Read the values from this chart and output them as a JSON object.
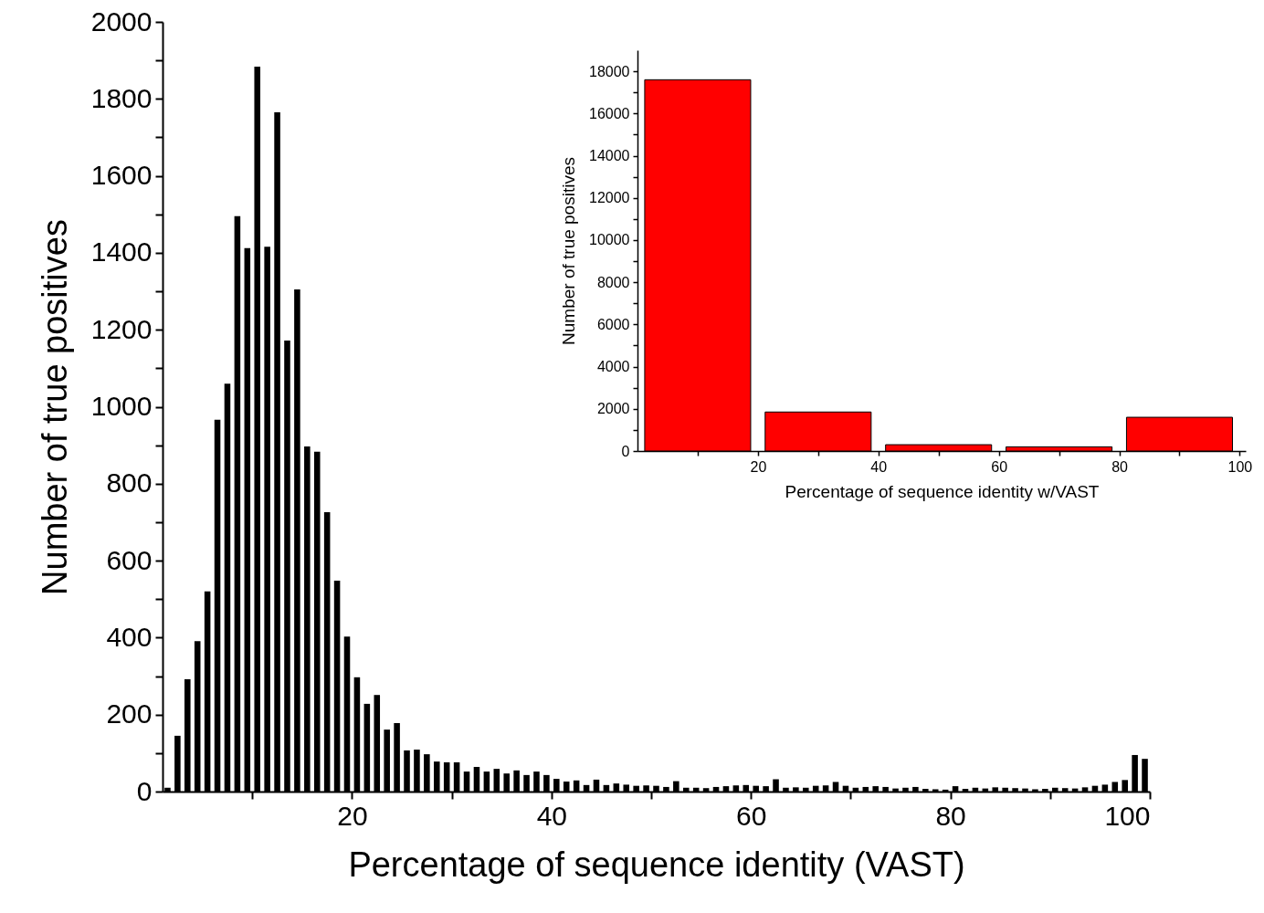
{
  "chart_data": [
    {
      "type": "histogram",
      "xlabel": "Percentage of sequence identity (VAST)",
      "ylabel": "Number of true positives",
      "color": "#000000",
      "bins": [
        1,
        2,
        3,
        4,
        5,
        6,
        7,
        8,
        9,
        10,
        11,
        12,
        13,
        14,
        15,
        16,
        17,
        18,
        19,
        20,
        21,
        22,
        23,
        24,
        25,
        26,
        27,
        28,
        29,
        30,
        31,
        32,
        33,
        34,
        35,
        36,
        37,
        38,
        39,
        40,
        41,
        42,
        43,
        44,
        45,
        46,
        47,
        48,
        49,
        50,
        51,
        52,
        53,
        54,
        55,
        56,
        57,
        58,
        59,
        60,
        61,
        62,
        63,
        64,
        65,
        66,
        67,
        68,
        69,
        70,
        71,
        72,
        73,
        74,
        75,
        76,
        77,
        78,
        79,
        80,
        81,
        82,
        83,
        84,
        85,
        86,
        87,
        88,
        89,
        90,
        91,
        92,
        93,
        94,
        95,
        96,
        97,
        98,
        99,
        100
      ],
      "values": [
        10,
        145,
        292,
        391,
        520,
        966,
        1060,
        1495,
        1412,
        1884,
        1416,
        1765,
        1172,
        1305,
        897,
        883,
        726,
        548,
        403,
        297,
        228,
        251,
        161,
        178,
        107,
        109,
        97,
        78,
        76,
        76,
        52,
        64,
        52,
        59,
        47,
        55,
        43,
        52,
        43,
        33,
        26,
        29,
        17,
        31,
        17,
        21,
        18,
        15,
        16,
        15,
        12,
        27,
        10,
        10,
        9,
        12,
        14,
        16,
        17,
        15,
        14,
        32,
        10,
        11,
        10,
        15,
        16,
        25,
        15,
        10,
        12,
        14,
        12,
        8,
        10,
        12,
        7,
        6,
        5,
        14,
        7,
        10,
        8,
        11,
        10,
        9,
        8,
        6,
        7,
        10,
        9,
        8,
        11,
        15,
        18,
        25,
        30,
        95,
        85
      ],
      "xlim": [
        1,
        100
      ],
      "xticks": [
        {
          "value": 10,
          "label": null
        },
        20,
        {
          "value": 30,
          "label": null
        },
        40,
        {
          "value": 50,
          "label": null
        },
        60,
        {
          "value": 70,
          "label": null
        },
        80,
        {
          "value": 90,
          "label": null
        },
        100
      ],
      "ylim": [
        0,
        2000
      ],
      "yticks": [
        0,
        {
          "value": 100,
          "label": null
        },
        200,
        {
          "value": 300,
          "label": null
        },
        400,
        {
          "value": 500,
          "label": null
        },
        600,
        {
          "value": 700,
          "label": null
        },
        800,
        {
          "value": 900,
          "label": null
        },
        1000,
        {
          "value": 1100,
          "label": null
        },
        1200,
        {
          "value": 1300,
          "label": null
        },
        1400,
        {
          "value": 1500,
          "label": null
        },
        1600,
        {
          "value": 1700,
          "label": null
        },
        1800,
        {
          "value": 1900,
          "label": null
        },
        2000
      ]
    },
    {
      "type": "histogram",
      "xlabel": "Percentage of sequence identity w/VAST",
      "ylabel": "Number of true positives",
      "color": "#ff0000",
      "bins": [
        0,
        20,
        40,
        60,
        80,
        100
      ],
      "values": [
        17600,
        1850,
        300,
        200,
        1600
      ],
      "xlim": [
        0,
        101
      ],
      "xticks": [
        {
          "value": 10,
          "label": null
        },
        20,
        {
          "value": 30,
          "label": null
        },
        40,
        {
          "value": 50,
          "label": null
        },
        60,
        {
          "value": 70,
          "label": null
        },
        80,
        {
          "value": 90,
          "label": null
        },
        100
      ],
      "ylim": [
        0,
        19000
      ],
      "yticks": [
        0,
        {
          "value": 1000,
          "label": null
        },
        2000,
        {
          "value": 3000,
          "label": null
        },
        4000,
        {
          "value": 5000,
          "label": null
        },
        6000,
        {
          "value": 7000,
          "label": null
        },
        8000,
        {
          "value": 9000,
          "label": null
        },
        10000,
        {
          "value": 11000,
          "label": null
        },
        12000,
        {
          "value": 13000,
          "label": null
        },
        14000,
        {
          "value": 15000,
          "label": null
        },
        16000,
        {
          "value": 17000,
          "label": null
        },
        18000
      ]
    }
  ]
}
